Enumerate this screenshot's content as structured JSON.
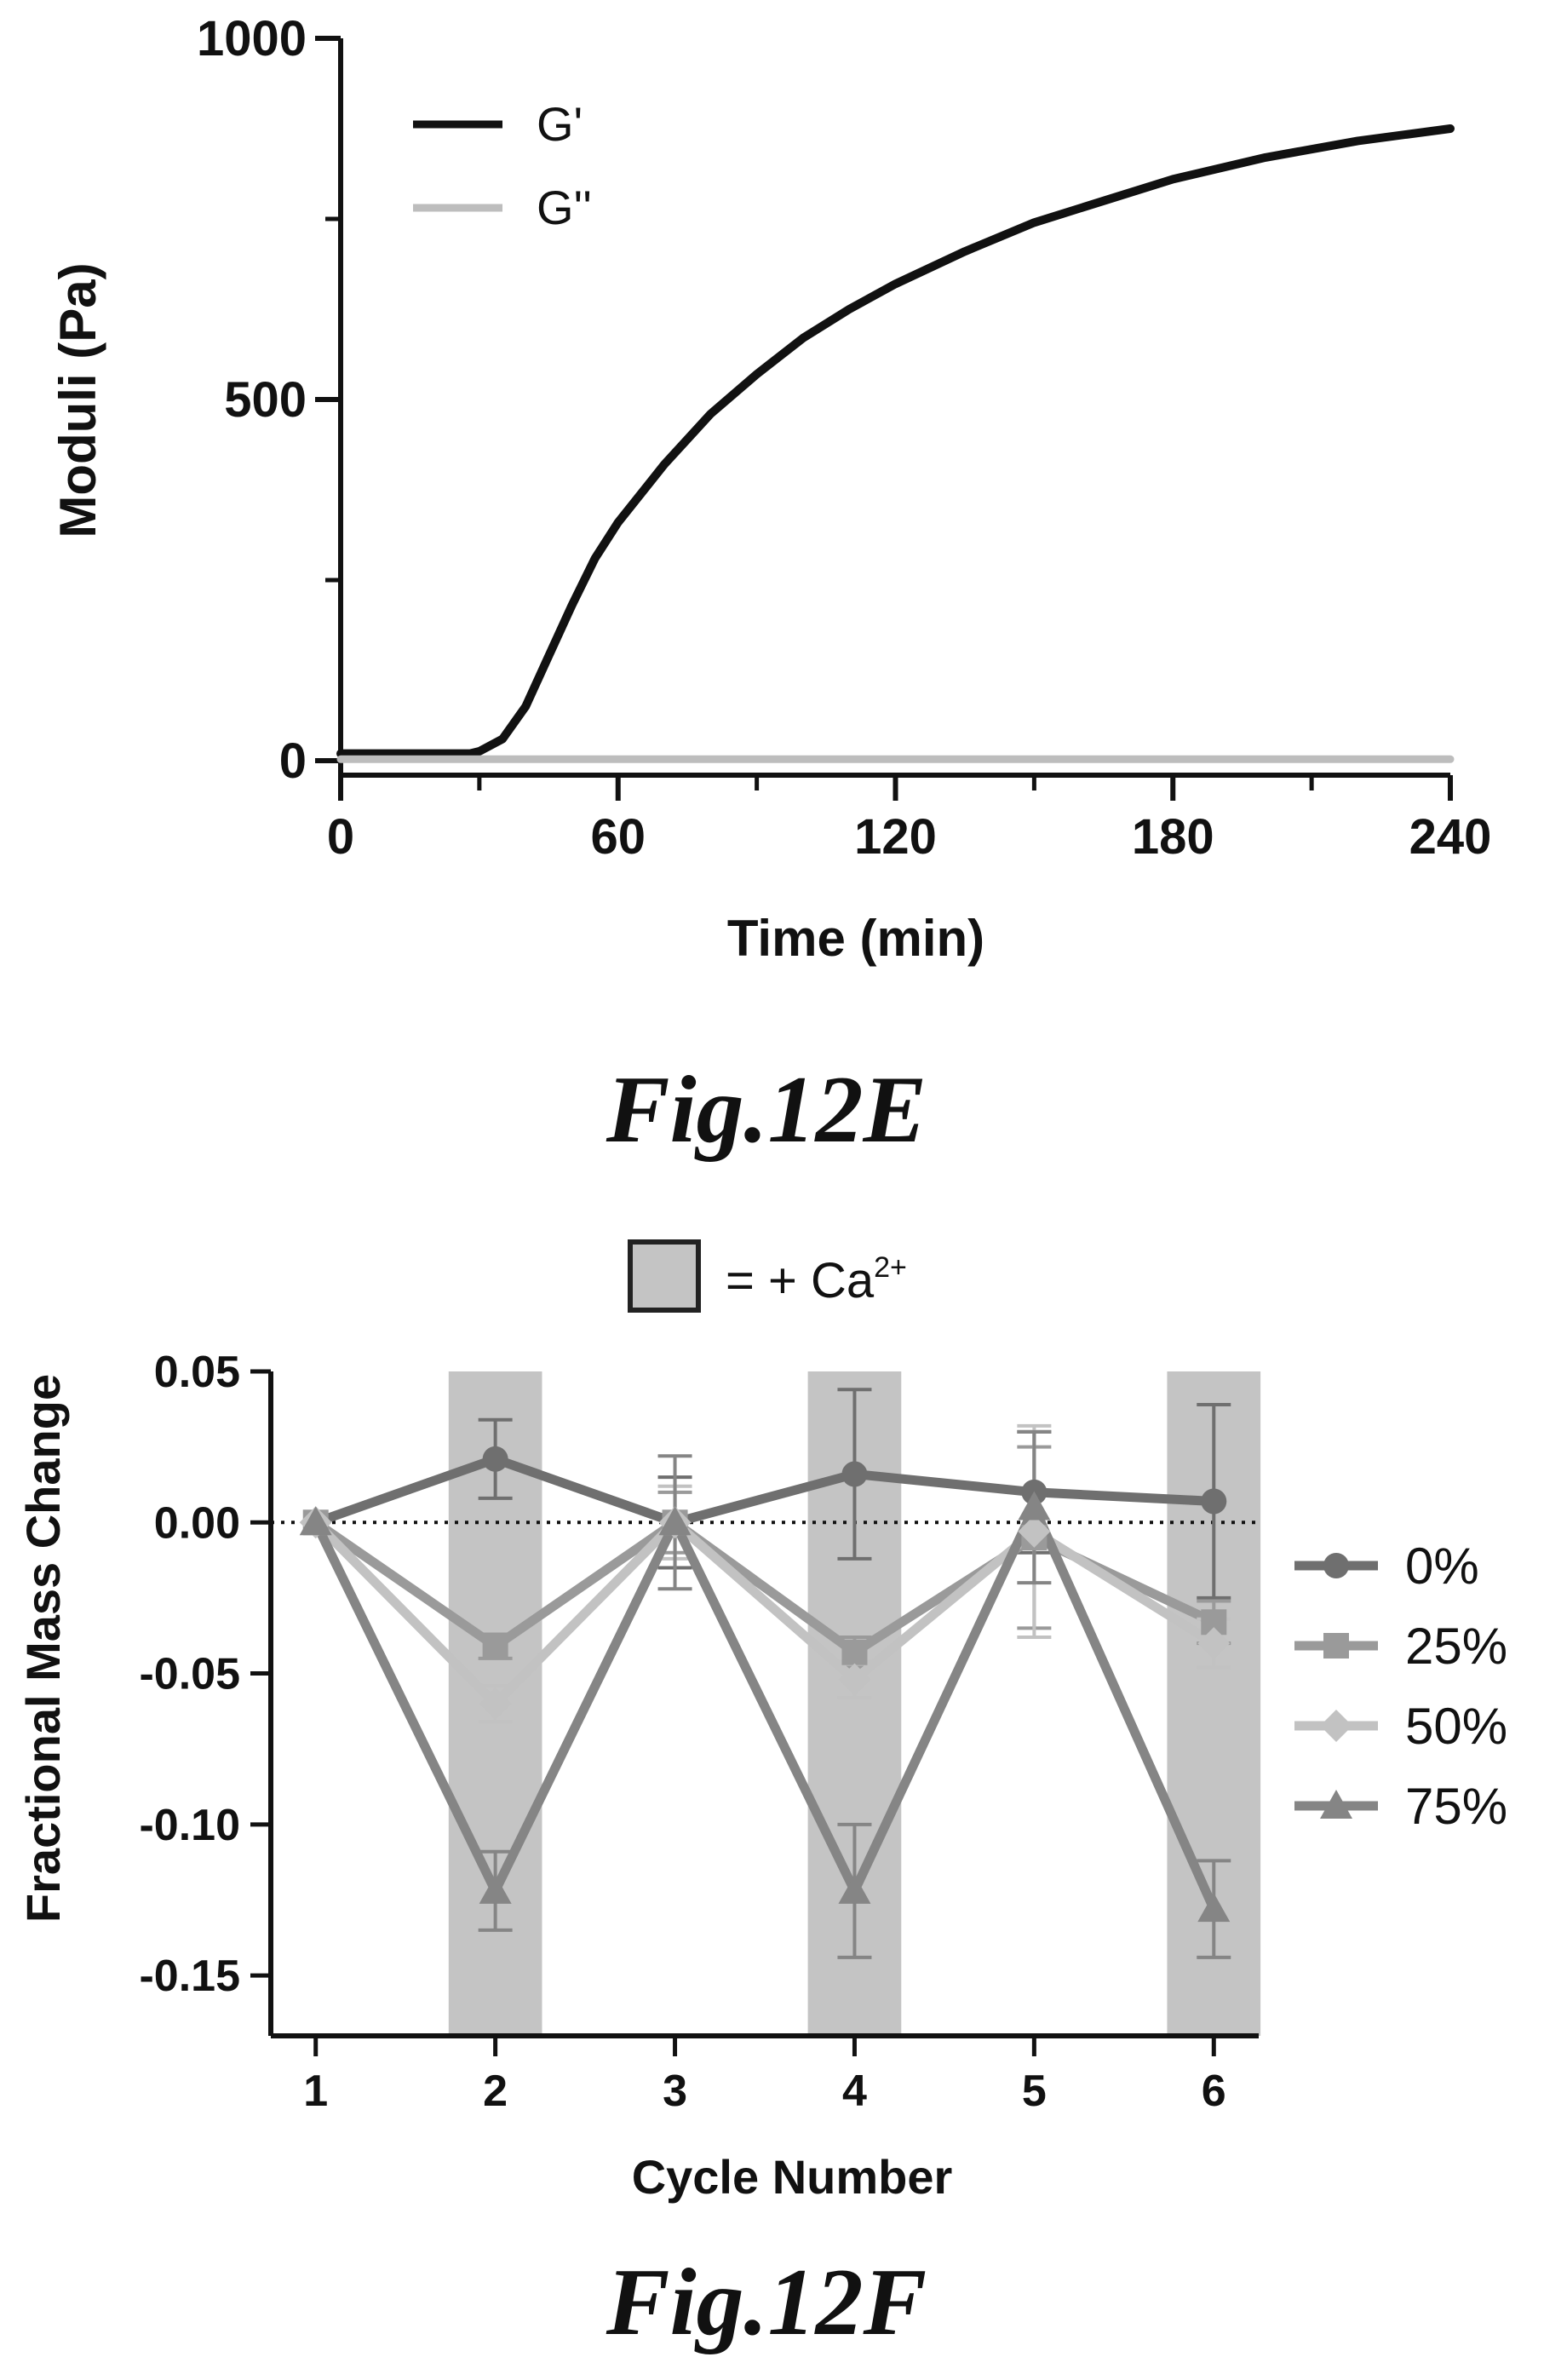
{
  "chart_data": [
    {
      "type": "line",
      "caption": "Fig.12E",
      "xlabel": "Time (min)",
      "ylabel": "Moduli (Pa)",
      "xlim": [
        0,
        240
      ],
      "ylim": [
        -20,
        1000
      ],
      "xticks": [
        "0",
        "60",
        "120",
        "180",
        "240"
      ],
      "yticks": [
        "0",
        "500",
        "1000"
      ],
      "legend_position": "top-left",
      "series": [
        {
          "name": "G'",
          "color": "#111111",
          "x": [
            0,
            10,
            20,
            28,
            30,
            35,
            40,
            45,
            50,
            55,
            60,
            70,
            80,
            90,
            100,
            110,
            120,
            135,
            150,
            165,
            180,
            200,
            220,
            240
          ],
          "y": [
            10,
            10,
            10,
            10,
            13,
            30,
            75,
            145,
            215,
            280,
            330,
            410,
            480,
            535,
            585,
            625,
            660,
            705,
            745,
            775,
            805,
            835,
            858,
            875
          ]
        },
        {
          "name": "G''",
          "color": "#bdbdbd",
          "x": [
            0,
            60,
            120,
            180,
            240
          ],
          "y": [
            2,
            2,
            2,
            2,
            2
          ]
        }
      ]
    },
    {
      "type": "line",
      "caption": "Fig.12F",
      "xlabel": "Cycle Number",
      "ylabel": "Fractional Mass Change",
      "xlim": [
        0.75,
        6.25
      ],
      "ylim": [
        -0.17,
        0.05
      ],
      "xticks": [
        "1",
        "2",
        "3",
        "4",
        "5",
        "6"
      ],
      "yticks": [
        "0.05",
        "0.00",
        "-0.05",
        "-0.10",
        "-0.15"
      ],
      "shade_key_label": "= + Ca",
      "shade_key_sup": "2+",
      "shaded_cycles": [
        2,
        4,
        6
      ],
      "reference_line_y": 0,
      "legend_position": "right",
      "categories": [
        1,
        2,
        3,
        4,
        5,
        6
      ],
      "series": [
        {
          "name": "0%",
          "color": "#6f6f6f",
          "marker": "circle",
          "values": [
            0,
            0.021,
            0,
            0.016,
            0.01,
            0.007
          ],
          "errors": [
            0,
            0.013,
            0.015,
            0.028,
            0.02,
            0.032
          ]
        },
        {
          "name": "25%",
          "color": "#9a9a9a",
          "marker": "square",
          "values": [
            0,
            -0.041,
            0,
            -0.043,
            -0.005,
            -0.033
          ],
          "errors": [
            0,
            0.004,
            0.01,
            0.005,
            0.03,
            0.007
          ]
        },
        {
          "name": "50%",
          "color": "#c2c2c2",
          "marker": "diamond",
          "values": [
            0,
            -0.06,
            0,
            -0.052,
            -0.003,
            -0.04
          ],
          "errors": [
            0,
            0.006,
            0.012,
            0.006,
            0.035,
            0.008
          ]
        },
        {
          "name": "75%",
          "color": "#858585",
          "marker": "triangle",
          "values": [
            0,
            -0.122,
            0,
            -0.122,
            0.005,
            -0.128
          ],
          "errors": [
            0,
            0.013,
            0.022,
            0.022,
            0.025,
            0.016
          ]
        }
      ]
    }
  ]
}
